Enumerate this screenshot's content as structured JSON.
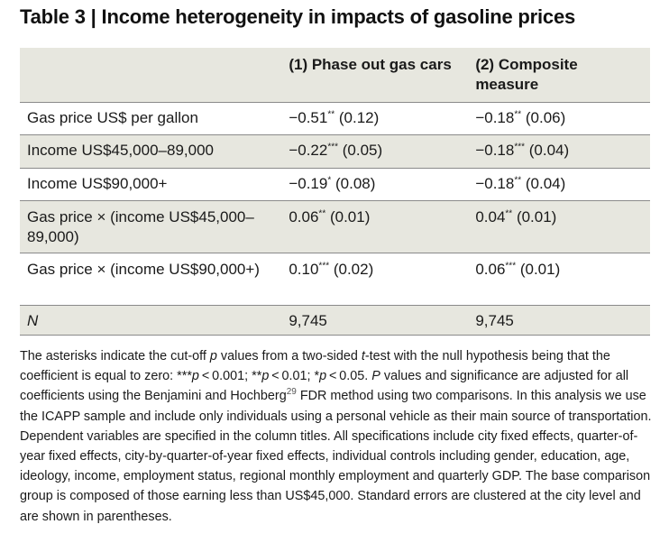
{
  "title": "Table 3 | Income heterogeneity in impacts of gasoline prices",
  "table": {
    "columns": [
      "",
      "(1) Phase out gas cars",
      "(2) Composite measure"
    ],
    "rows": [
      {
        "label": "Gas price US$ per gallon",
        "col1": {
          "coef": "−0.51",
          "stars": "**",
          "se": "(0.12)"
        },
        "col2": {
          "coef": "−0.18",
          "stars": "**",
          "se": "(0.06)"
        }
      },
      {
        "label": "Income US$45,000–89,000",
        "col1": {
          "coef": "−0.22",
          "stars": "***",
          "se": "(0.05)"
        },
        "col2": {
          "coef": "−0.18",
          "stars": "***",
          "se": "(0.04)"
        }
      },
      {
        "label": "Income US$90,000+",
        "col1": {
          "coef": "−0.19",
          "stars": "*",
          "se": "(0.08)"
        },
        "col2": {
          "coef": "−0.18",
          "stars": "**",
          "se": "(0.04)"
        }
      },
      {
        "label": "Gas price × (income US$45,000–89,000)",
        "col1": {
          "coef": "0.06",
          "stars": "**",
          "se": "(0.01)"
        },
        "col2": {
          "coef": "0.04",
          "stars": "**",
          "se": "(0.01)"
        }
      },
      {
        "label": "Gas price × (income US$90,000+)",
        "col1": {
          "coef": "0.10",
          "stars": "***",
          "se": "(0.02)"
        },
        "col2": {
          "coef": "0.06",
          "stars": "***",
          "se": "(0.01)"
        }
      },
      {
        "label": "N",
        "col1": "9,745",
        "col2": "9,745"
      }
    ]
  },
  "caption": {
    "t1": "The asterisks indicate the cut-off ",
    "p1": "p",
    "t2": " values from a two-sided ",
    "t_ital": "t",
    "t3": "-test with the null hypothesis being that the coefficient is equal to zero: ***",
    "p2": "p",
    "t4": " < 0.001; **",
    "p3": "p",
    "t5": " < 0.01; *",
    "p4": "p",
    "t6": " < 0.05. ",
    "p5": "P",
    "t7": " values and significance are adjusted for all coefficients using the Benjamini and Hochberg",
    "ref": "29",
    "t8": " FDR method using two comparisons. In this analysis we use the ICAPP sample and include only individuals using a personal vehicle as their main source of transportation. Dependent variables are specified in the column titles. All specifications include city fixed effects, quarter-of-year fixed effects, city-by-quarter-of-year fixed effects, individual controls including gender, education, age, ideology, income, employment status, regional monthly employment and quarterly GDP. The base comparison group is composed of those earning less than US$45,000. Standard errors are clustered at the city level and are shown in parentheses."
  }
}
